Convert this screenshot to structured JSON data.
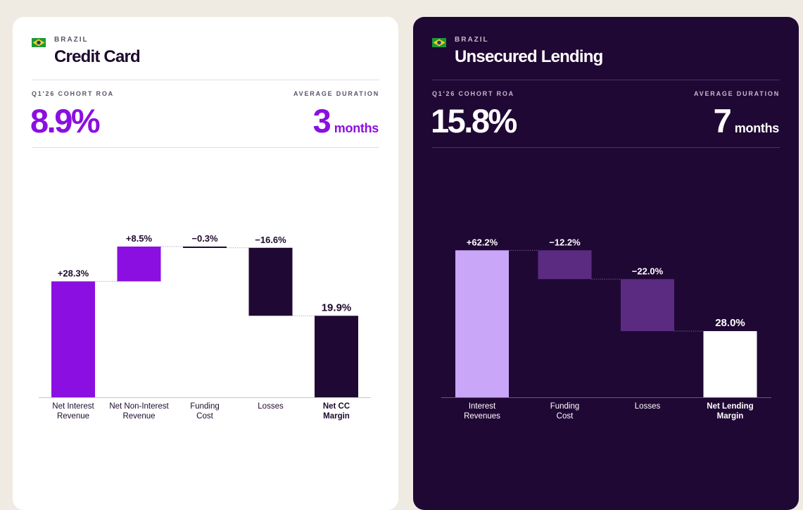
{
  "chart_data": [
    {
      "type": "waterfall",
      "country": "BRAZIL",
      "title": "Credit Card",
      "metrics": {
        "roa_label": "Q1'26 COHORT ROA",
        "roa_value": "8.9%",
        "duration_label": "AVERAGE DURATION",
        "duration_value": "3",
        "duration_unit": "months"
      },
      "ylim": [
        0,
        40
      ],
      "steps": [
        {
          "category": [
            "Net Interest",
            "Revenue"
          ],
          "value": 28.3,
          "label": "+28.3%",
          "kind": "increase",
          "bold": false
        },
        {
          "category": [
            "Net Non-Interest",
            "Revenue"
          ],
          "value": 8.5,
          "label": "+8.5%",
          "kind": "increase",
          "bold": false
        },
        {
          "category": [
            "Funding",
            "Cost"
          ],
          "value": -0.3,
          "label": "−0.3%",
          "kind": "decrease",
          "bold": false
        },
        {
          "category": [
            "Losses"
          ],
          "value": -16.6,
          "label": "−16.6%",
          "kind": "decrease",
          "bold": false
        },
        {
          "category": [
            "Net CC",
            "Margin"
          ],
          "value": 19.9,
          "label": "19.9%",
          "kind": "total",
          "bold": true
        }
      ],
      "colors": {
        "increase": "#8a0fe0",
        "decrease": "#200834",
        "total": "#200834",
        "text": "#1e0a2e",
        "axis": "#c9c3cf",
        "connector": "#b7b0bf"
      }
    },
    {
      "type": "waterfall",
      "country": "BRAZIL",
      "title": "Unsecured Lending",
      "metrics": {
        "roa_label": "Q1'26 COHORT ROA",
        "roa_value": "15.8%",
        "duration_label": "AVERAGE DURATION",
        "duration_value": "7",
        "duration_unit": "months"
      },
      "ylim": [
        0,
        65
      ],
      "steps": [
        {
          "category": [
            "Interest",
            "Revenues"
          ],
          "value": 62.2,
          "label": "+62.2%",
          "kind": "increase",
          "bold": false
        },
        {
          "category": [
            "Funding",
            "Cost"
          ],
          "value": -12.2,
          "label": "−12.2%",
          "kind": "decrease",
          "bold": false
        },
        {
          "category": [
            "Losses"
          ],
          "value": -22.0,
          "label": "−22.0%",
          "kind": "decrease",
          "bold": false
        },
        {
          "category": [
            "Net Lending",
            "Margin"
          ],
          "value": 28.0,
          "label": "28.0%",
          "kind": "total",
          "bold": true
        }
      ],
      "colors": {
        "increase": "#c9a6f7",
        "decrease": "#5b2b82",
        "total": "#ffffff",
        "text": "#ffffff",
        "axis": "#6b5680",
        "connector": "#6b5680"
      }
    }
  ]
}
